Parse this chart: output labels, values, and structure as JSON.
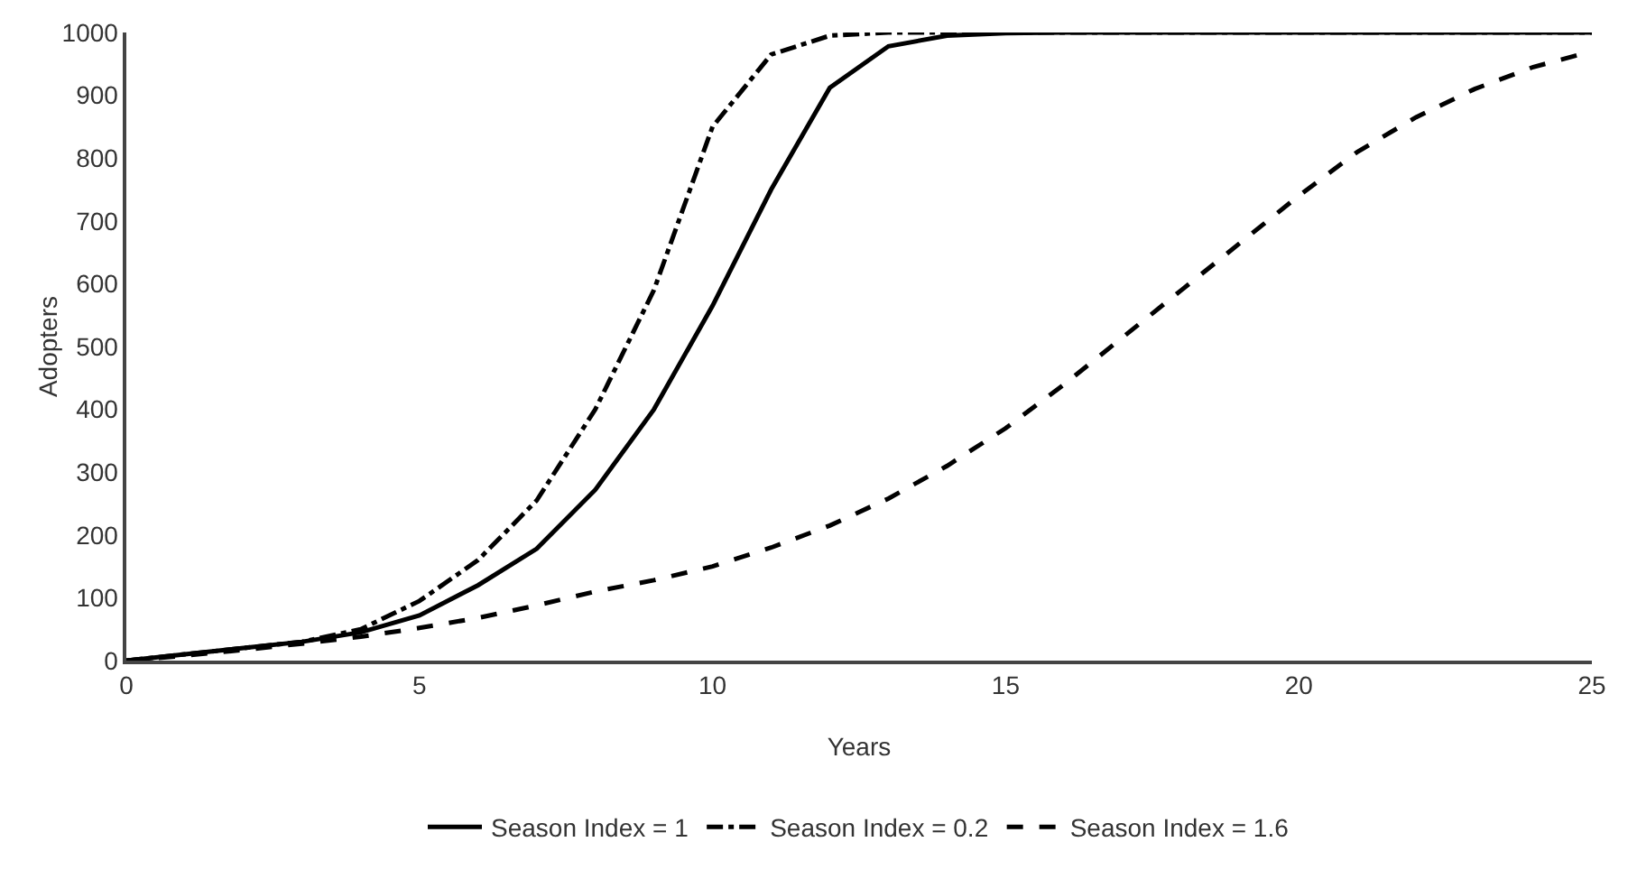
{
  "chart_data": {
    "type": "line",
    "xlabel": "Years",
    "ylabel": "Adopters",
    "x": [
      0,
      1,
      2,
      3,
      4,
      5,
      6,
      7,
      8,
      9,
      10,
      11,
      12,
      13,
      14,
      15,
      16,
      17,
      18,
      19,
      20,
      21,
      22,
      23,
      24,
      25
    ],
    "series": [
      {
        "name": "Season Index = 1",
        "color": "#000000",
        "line_style": "solid",
        "values": [
          0,
          10,
          20,
          30,
          45,
          72,
          120,
          178,
          272,
          400,
          565,
          750,
          912,
          978,
          995,
          999,
          1000,
          1000,
          1000,
          1000,
          1000,
          1000,
          1000,
          1000,
          1000,
          1000
        ]
      },
      {
        "name": "Season Index = 0.2",
        "color": "#000000",
        "line_style": "dashdot",
        "values": [
          0,
          10,
          20,
          30,
          50,
          95,
          160,
          255,
          400,
          590,
          850,
          965,
          995,
          1000,
          1000,
          1000,
          1000,
          1000,
          1000,
          1000,
          1000,
          1000,
          1000,
          1000,
          1000,
          1000
        ]
      },
      {
        "name": "Season Index = 1.6",
        "color": "#000000",
        "line_style": "dashed",
        "values": [
          0,
          8,
          17,
          27,
          38,
          52,
          68,
          88,
          110,
          128,
          150,
          180,
          215,
          258,
          310,
          370,
          440,
          515,
          590,
          665,
          740,
          810,
          865,
          910,
          945,
          970
        ]
      }
    ],
    "xlim": [
      0,
      25
    ],
    "xticks": [
      0,
      5,
      10,
      15,
      20,
      25
    ],
    "ylim": [
      0,
      1000
    ],
    "yticks": [
      0,
      100,
      200,
      300,
      400,
      500,
      600,
      700,
      800,
      900,
      1000
    ],
    "grid": false,
    "legend": "bottom",
    "marker": "none"
  }
}
